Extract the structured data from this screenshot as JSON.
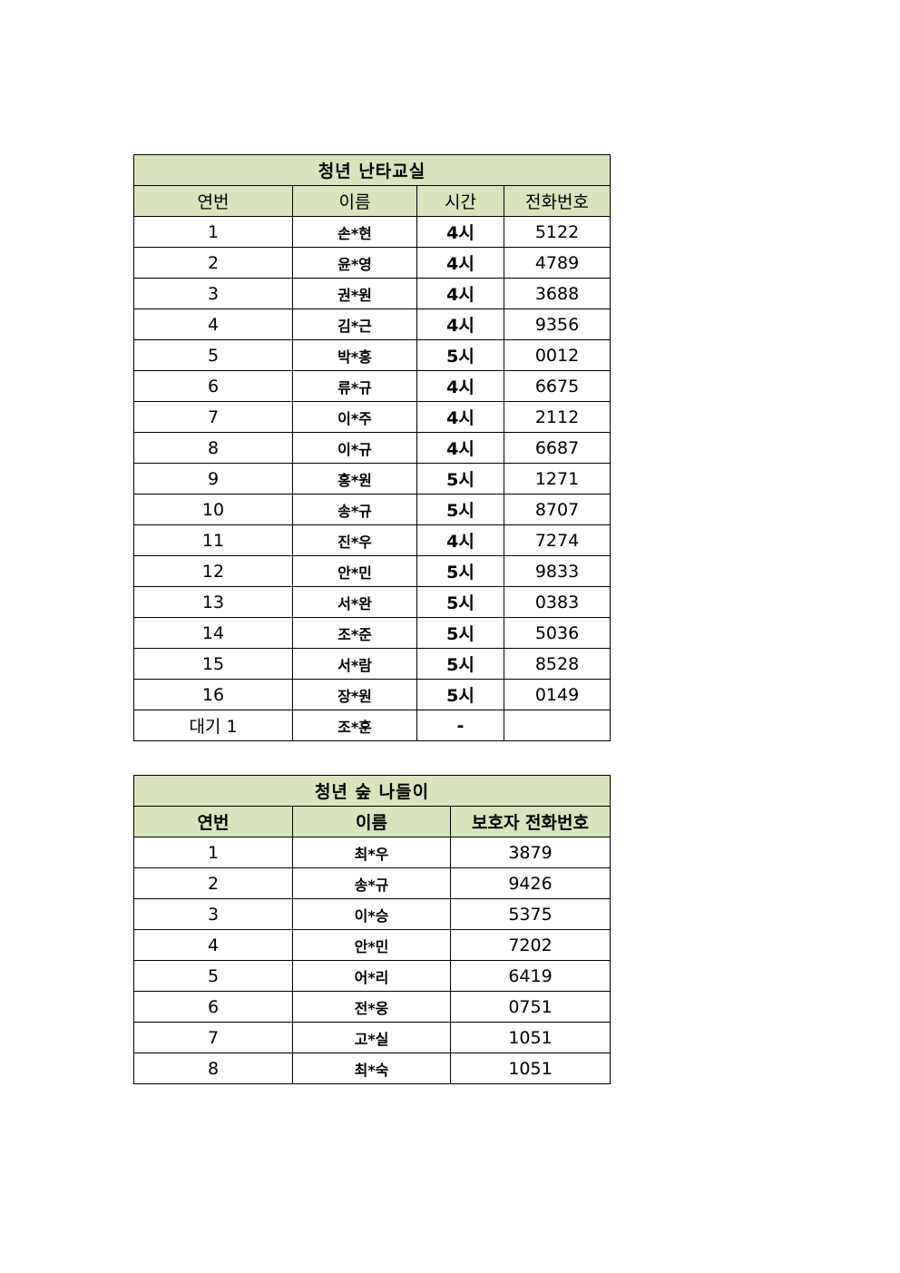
{
  "table1": {
    "title": "청년 난타교실",
    "headers": [
      "연번",
      "이름",
      "시간",
      "전화번호"
    ],
    "rows": [
      [
        "1",
        "손*현",
        "4시",
        "5122"
      ],
      [
        "2",
        "윤*영",
        "4시",
        "4789"
      ],
      [
        "3",
        "권*원",
        "4시",
        "3688"
      ],
      [
        "4",
        "김*근",
        "4시",
        "9356"
      ],
      [
        "5",
        "박*홍",
        "5시",
        "0012"
      ],
      [
        "6",
        "류*규",
        "4시",
        "6675"
      ],
      [
        "7",
        "이*주",
        "4시",
        "2112"
      ],
      [
        "8",
        "이*규",
        "4시",
        "6687"
      ],
      [
        "9",
        "홍*원",
        "5시",
        "1271"
      ],
      [
        "10",
        "송*규",
        "5시",
        "8707"
      ],
      [
        "11",
        "진*우",
        "4시",
        "7274"
      ],
      [
        "12",
        "안*민",
        "5시",
        "9833"
      ],
      [
        "13",
        "서*완",
        "5시",
        "0383"
      ],
      [
        "14",
        "조*준",
        "5시",
        "5036"
      ],
      [
        "15",
        "서*람",
        "5시",
        "8528"
      ],
      [
        "16",
        "장*원",
        "5시",
        "0149"
      ],
      [
        "대기 1",
        "조*훈",
        "-",
        ""
      ]
    ]
  },
  "table2": {
    "title": "청년 숲 나들이",
    "headers": [
      "연번",
      "이름",
      "보호자 전화번호"
    ],
    "rows": [
      [
        "1",
        "최*우",
        "3879"
      ],
      [
        "2",
        "송*규",
        "9426"
      ],
      [
        "3",
        "이*승",
        "5375"
      ],
      [
        "4",
        "안*민",
        "7202"
      ],
      [
        "5",
        "어*리",
        "6419"
      ],
      [
        "6",
        "전*웅",
        "0751"
      ],
      [
        "7",
        "고*실",
        "1051"
      ],
      [
        "8",
        "최*숙",
        "1051"
      ]
    ]
  },
  "colors": {
    "header_bg": "#d8e4bc",
    "border": "#000000"
  }
}
